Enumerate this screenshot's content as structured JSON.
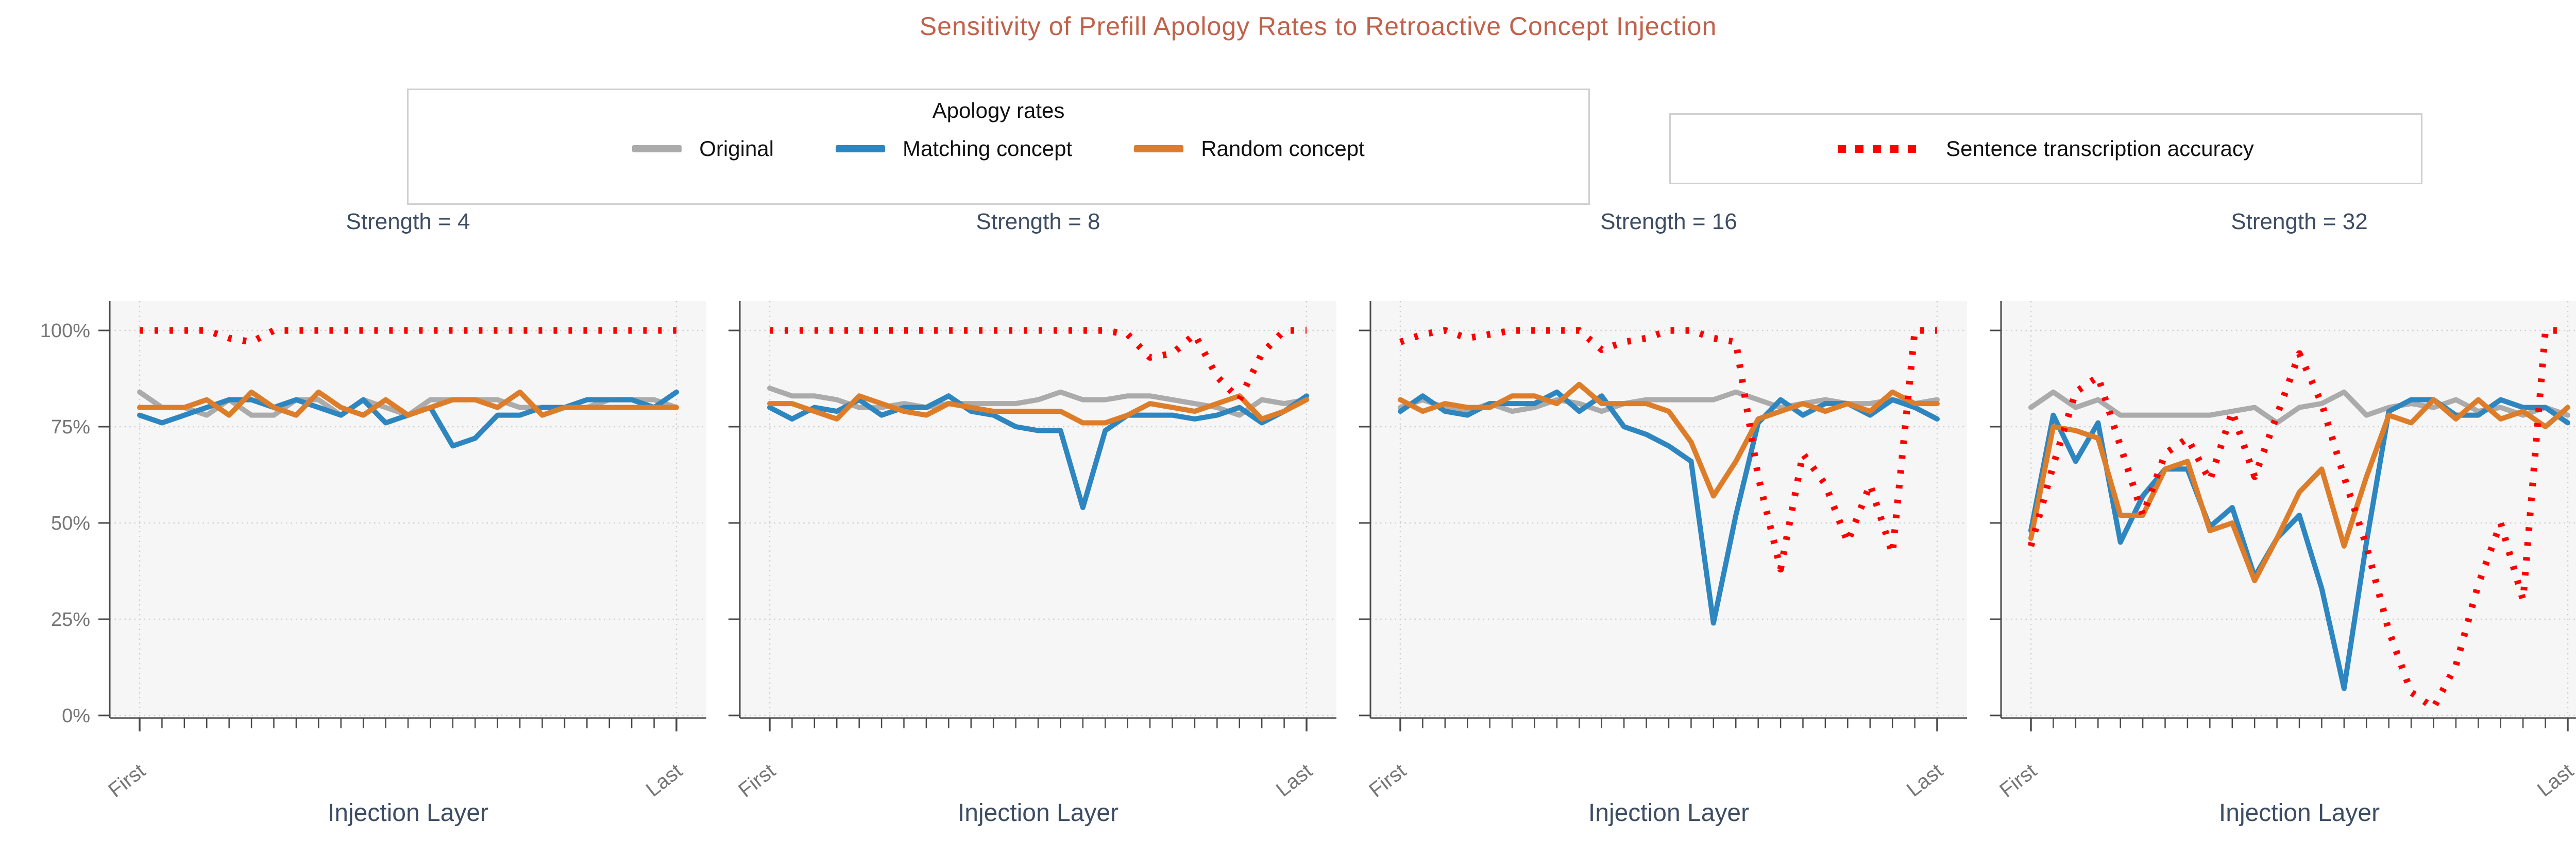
{
  "title": "Sensitivity of Prefill Apology Rates to Retroactive Concept Injection",
  "colors": {
    "original": "#ababab",
    "matching": "#2d86c0",
    "random": "#dd7d2a",
    "transcription": "#ff0000",
    "title_text": "#c1614a",
    "slate_text": "#3d4d63",
    "tick_text": "#767676",
    "spine": "#4a4a4a",
    "grid": "#cfcfcf",
    "plot_bg": "#f6f6f6"
  },
  "legend_apology": {
    "title": "Apology rates",
    "items": [
      {
        "label": "Original",
        "color_key": "original"
      },
      {
        "label": "Matching concept",
        "color_key": "matching"
      },
      {
        "label": "Random concept",
        "color_key": "random"
      }
    ]
  },
  "legend_accuracy": {
    "label": "Sentence transcription accuracy"
  },
  "axis": {
    "xlabel": "Injection Layer",
    "x_first": "First",
    "x_last": "Last",
    "yticks": [
      "0%",
      "25%",
      "50%",
      "75%",
      "100%"
    ],
    "ytick_values": [
      0,
      25,
      50,
      75,
      100
    ],
    "ylim": [
      0,
      100
    ],
    "grid": "dotted horizontal at 25% steps, dotted vertical at First and Last"
  },
  "chart_data": [
    {
      "type": "line",
      "title": "Strength = 4",
      "x_points": 25,
      "x_range": [
        "First",
        "Last"
      ],
      "ylim": [
        0,
        100
      ],
      "series": [
        {
          "name": "Original",
          "color_key": "original",
          "style": "solid",
          "values": [
            84,
            80,
            80,
            78,
            82,
            78,
            78,
            82,
            82,
            78,
            82,
            80,
            78,
            82,
            82,
            82,
            82,
            80,
            80,
            80,
            80,
            82,
            82,
            82,
            80
          ]
        },
        {
          "name": "Matching concept",
          "color_key": "matching",
          "style": "solid",
          "values": [
            78,
            76,
            78,
            80,
            82,
            82,
            80,
            82,
            80,
            78,
            82,
            76,
            78,
            80,
            70,
            72,
            78,
            78,
            80,
            80,
            82,
            82,
            82,
            80,
            84
          ]
        },
        {
          "name": "Random concept",
          "color_key": "random",
          "style": "solid",
          "values": [
            80,
            80,
            80,
            82,
            78,
            84,
            80,
            78,
            84,
            80,
            78,
            82,
            78,
            80,
            82,
            82,
            80,
            84,
            78,
            80,
            80,
            80,
            80,
            80,
            80
          ]
        },
        {
          "name": "Sentence transcription accuracy",
          "color_key": "transcription",
          "style": "dotted",
          "values": [
            100,
            100,
            100,
            100,
            98,
            97,
            100,
            100,
            100,
            100,
            100,
            100,
            100,
            100,
            100,
            100,
            100,
            100,
            100,
            100,
            100,
            100,
            100,
            100,
            100
          ]
        }
      ]
    },
    {
      "type": "line",
      "title": "Strength = 8",
      "x_points": 25,
      "x_range": [
        "First",
        "Last"
      ],
      "ylim": [
        0,
        100
      ],
      "series": [
        {
          "name": "Original",
          "color_key": "original",
          "style": "solid",
          "values": [
            85,
            83,
            83,
            82,
            80,
            80,
            81,
            80,
            81,
            81,
            81,
            81,
            82,
            84,
            82,
            82,
            83,
            83,
            82,
            81,
            80,
            78,
            82,
            81,
            82
          ]
        },
        {
          "name": "Matching concept",
          "color_key": "matching",
          "style": "solid",
          "values": [
            80,
            77,
            80,
            79,
            82,
            78,
            80,
            80,
            83,
            79,
            78,
            75,
            74,
            74,
            54,
            74,
            78,
            78,
            78,
            77,
            78,
            80,
            76,
            79,
            83
          ]
        },
        {
          "name": "Random concept",
          "color_key": "random",
          "style": "solid",
          "values": [
            81,
            81,
            79,
            77,
            83,
            81,
            79,
            78,
            81,
            80,
            79,
            79,
            79,
            79,
            76,
            76,
            78,
            81,
            80,
            79,
            81,
            83,
            77,
            79,
            82
          ]
        },
        {
          "name": "Sentence transcription accuracy",
          "color_key": "transcription",
          "style": "dotted",
          "values": [
            100,
            100,
            100,
            100,
            100,
            100,
            100,
            100,
            100,
            100,
            100,
            100,
            100,
            100,
            100,
            100,
            99,
            93,
            94,
            99,
            88,
            82,
            94,
            100,
            100
          ]
        }
      ]
    },
    {
      "type": "line",
      "title": "Strength = 16",
      "x_points": 25,
      "x_range": [
        "First",
        "Last"
      ],
      "ylim": [
        0,
        100
      ],
      "series": [
        {
          "name": "Original",
          "color_key": "original",
          "style": "solid",
          "values": [
            80,
            82,
            80,
            79,
            81,
            79,
            80,
            82,
            81,
            79,
            81,
            82,
            82,
            82,
            82,
            84,
            82,
            80,
            81,
            82,
            81,
            81,
            82,
            81,
            82
          ]
        },
        {
          "name": "Matching concept",
          "color_key": "matching",
          "style": "solid",
          "values": [
            79,
            83,
            79,
            78,
            81,
            81,
            81,
            84,
            79,
            83,
            75,
            73,
            70,
            66,
            24,
            52,
            76,
            82,
            78,
            81,
            81,
            78,
            82,
            80,
            77
          ]
        },
        {
          "name": "Random concept",
          "color_key": "random",
          "style": "solid",
          "values": [
            82,
            79,
            81,
            80,
            80,
            83,
            83,
            81,
            86,
            81,
            81,
            81,
            79,
            71,
            57,
            66,
            77,
            79,
            81,
            79,
            81,
            79,
            84,
            81,
            81
          ]
        },
        {
          "name": "Sentence transcription accuracy",
          "color_key": "transcription",
          "style": "dotted",
          "values": [
            97,
            99,
            100,
            98,
            99,
            100,
            100,
            100,
            100,
            95,
            97,
            98,
            100,
            100,
            98,
            97,
            62,
            38,
            68,
            60,
            45,
            60,
            42,
            100,
            100
          ]
        }
      ]
    },
    {
      "type": "line",
      "title": "Strength = 32",
      "x_points": 25,
      "x_range": [
        "First",
        "Last"
      ],
      "ylim": [
        0,
        100
      ],
      "series": [
        {
          "name": "Original",
          "color_key": "original",
          "style": "solid",
          "values": [
            80,
            84,
            80,
            82,
            78,
            78,
            78,
            78,
            78,
            79,
            80,
            76,
            80,
            81,
            84,
            78,
            80,
            81,
            80,
            82,
            79,
            80,
            78,
            80,
            78
          ]
        },
        {
          "name": "Matching concept",
          "color_key": "matching",
          "style": "solid",
          "values": [
            48,
            78,
            66,
            76,
            45,
            57,
            64,
            64,
            49,
            54,
            36,
            46,
            52,
            33,
            7,
            45,
            79,
            82,
            82,
            78,
            78,
            82,
            80,
            80,
            76
          ]
        },
        {
          "name": "Random concept",
          "color_key": "random",
          "style": "solid",
          "values": [
            46,
            75,
            74,
            72,
            52,
            52,
            64,
            66,
            48,
            50,
            35,
            46,
            58,
            64,
            44,
            62,
            78,
            76,
            82,
            77,
            82,
            77,
            79,
            75,
            80
          ]
        },
        {
          "name": "Sentence transcription accuracy",
          "color_key": "transcription",
          "style": "dotted",
          "values": [
            44,
            65,
            84,
            88,
            70,
            52,
            68,
            72,
            61,
            79,
            62,
            78,
            94,
            81,
            62,
            44,
            22,
            6,
            2,
            13,
            34,
            50,
            30,
            100,
            100
          ]
        }
      ]
    }
  ]
}
